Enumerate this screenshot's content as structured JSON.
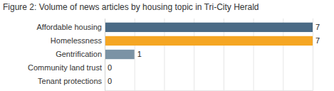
{
  "chart_data": {
    "type": "bar",
    "orientation": "horizontal",
    "title": "Figure 2: Volume of news articles by housing topic in Tri-City Herald",
    "categories": [
      "Affordable housing",
      "Homelessness",
      "Gentrification",
      "Community land trust",
      "Tenant protections"
    ],
    "values": [
      7,
      7,
      1,
      0,
      0
    ],
    "colors": [
      "#4a6a85",
      "#f5a623",
      "#7b93a5",
      "#4a6a85",
      "#4a6a85"
    ],
    "xlim": [
      0,
      7
    ],
    "xticks": [
      0,
      1,
      2,
      3,
      4,
      5,
      6,
      7
    ],
    "grid": true,
    "data_labels": true,
    "tick_labels": "y"
  }
}
